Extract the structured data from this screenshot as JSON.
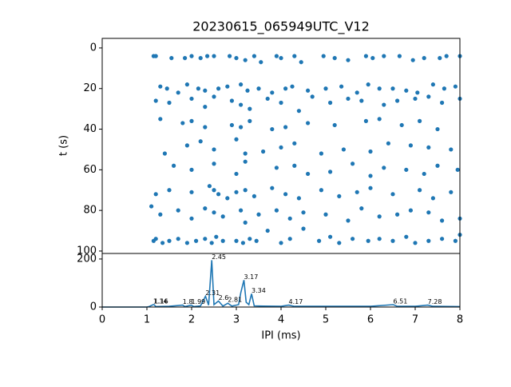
{
  "chart_data": [
    {
      "type": "scatter",
      "title": "20230615_065949UTC_V12",
      "y_label": "t (s)",
      "color": "#1f77b4",
      "xlim": [
        0,
        8
      ],
      "ylim": [
        -4.7,
        101.2
      ],
      "invert_y": true,
      "yticks": [
        0,
        20,
        40,
        60,
        80,
        100
      ],
      "x": [
        1.15,
        1.2,
        1.55,
        1.85,
        2.0,
        2.2,
        2.35,
        2.5,
        2.85,
        3.0,
        3.2,
        3.4,
        3.55,
        3.9,
        4.0,
        4.3,
        4.45,
        4.95,
        5.2,
        5.5,
        5.9,
        6.05,
        6.3,
        6.65,
        6.95,
        7.2,
        7.55,
        7.7,
        8.0,
        1.3,
        1.45,
        1.7,
        1.9,
        2.15,
        2.3,
        2.6,
        2.8,
        3.1,
        3.25,
        3.5,
        3.8,
        4.1,
        4.25,
        4.6,
        5.0,
        5.35,
        5.7,
        5.95,
        6.2,
        6.5,
        6.8,
        7.05,
        7.4,
        7.65,
        7.9,
        1.2,
        1.5,
        2.0,
        2.3,
        2.5,
        2.9,
        3.1,
        3.3,
        3.7,
        4.0,
        4.4,
        4.7,
        5.1,
        5.5,
        5.8,
        6.3,
        6.6,
        7.0,
        7.3,
        7.6,
        8.0,
        1.3,
        1.8,
        2.0,
        2.3,
        2.9,
        3.1,
        3.3,
        3.8,
        4.1,
        4.6,
        5.2,
        5.9,
        6.2,
        6.7,
        7.1,
        7.5,
        1.4,
        1.9,
        2.2,
        2.5,
        3.0,
        3.2,
        3.6,
        4.0,
        4.3,
        4.9,
        5.4,
        6.0,
        6.4,
        6.9,
        7.3,
        7.8,
        1.6,
        2.0,
        2.5,
        3.0,
        3.2,
        3.9,
        4.3,
        4.6,
        5.1,
        5.6,
        6.0,
        6.3,
        6.8,
        7.2,
        7.5,
        7.95,
        1.2,
        1.5,
        2.0,
        2.4,
        2.5,
        2.6,
        2.8,
        3.0,
        3.2,
        3.4,
        3.8,
        4.1,
        4.4,
        4.9,
        5.3,
        5.7,
        6.0,
        6.5,
        7.1,
        7.4,
        7.8,
        1.1,
        1.3,
        1.7,
        2.0,
        2.3,
        2.5,
        2.7,
        3.1,
        3.2,
        3.5,
        3.9,
        4.2,
        4.5,
        5.0,
        5.5,
        5.8,
        6.2,
        6.6,
        6.9,
        7.3,
        7.6,
        8.0,
        1.15,
        1.2,
        1.35,
        1.5,
        1.7,
        1.9,
        2.1,
        2.3,
        2.45,
        2.55,
        2.7,
        3.0,
        3.15,
        3.3,
        3.45,
        3.7,
        4.0,
        4.2,
        4.5,
        4.85,
        5.1,
        5.3,
        5.6,
        5.95,
        6.2,
        6.5,
        6.8,
        7.0,
        7.3,
        7.6,
        7.9,
        8.0
      ],
      "values": [
        4,
        4,
        5,
        5,
        4,
        5,
        4,
        4,
        4,
        5,
        6,
        4,
        7,
        4,
        5,
        4,
        7,
        4,
        5,
        6,
        4,
        5,
        4,
        4,
        6,
        5,
        5,
        4,
        4,
        19,
        20,
        22,
        18,
        20,
        21,
        20,
        19,
        18,
        21,
        20,
        22,
        20,
        19,
        21,
        20,
        19,
        22,
        18,
        20,
        20,
        21,
        22,
        18,
        20,
        19,
        26,
        27,
        25,
        29,
        24,
        26,
        28,
        30,
        25,
        27,
        31,
        24,
        27,
        25,
        26,
        28,
        26,
        25,
        24,
        27,
        25,
        35,
        37,
        36,
        39,
        38,
        39,
        36,
        40,
        39,
        37,
        38,
        36,
        35,
        38,
        36,
        40,
        52,
        48,
        46,
        50,
        45,
        52,
        51,
        49,
        47,
        52,
        50,
        51,
        47,
        48,
        49,
        50,
        58,
        60,
        57,
        62,
        56,
        59,
        58,
        62,
        61,
        57,
        63,
        59,
        60,
        62,
        58,
        60,
        72,
        70,
        71,
        68,
        70,
        72,
        74,
        71,
        70,
        73,
        69,
        72,
        74,
        70,
        73,
        71,
        69,
        72,
        70,
        74,
        71,
        78,
        82,
        80,
        84,
        79,
        81,
        83,
        80,
        86,
        82,
        80,
        84,
        81,
        82,
        85,
        79,
        83,
        82,
        80,
        81,
        85,
        84,
        95,
        94,
        96,
        95,
        94,
        96,
        95,
        94,
        96,
        93,
        95,
        95,
        96,
        94,
        95,
        90,
        96,
        94,
        89,
        95,
        93,
        96,
        94,
        95,
        94,
        95,
        93,
        96,
        95,
        94,
        95,
        92
      ]
    },
    {
      "type": "line",
      "x_label": "IPI (ms)",
      "color": "#1f77b4",
      "xlim": [
        0,
        8
      ],
      "xticks": [
        0,
        1,
        2,
        3,
        4,
        5,
        6,
        7,
        8
      ],
      "ylim": [
        0,
        223
      ],
      "yticks": [
        0,
        200
      ],
      "x": [
        0,
        1,
        1.05,
        1.14,
        1.16,
        1.2,
        1.5,
        1.8,
        1.85,
        1.99,
        2.05,
        2.2,
        2.31,
        2.38,
        2.45,
        2.5,
        2.6,
        2.7,
        2.81,
        2.9,
        3.05,
        3.1,
        3.17,
        3.22,
        3.28,
        3.34,
        3.4,
        3.6,
        4.0,
        4.17,
        4.3,
        5.0,
        6.0,
        6.51,
        6.6,
        7.0,
        7.28,
        7.4,
        8
      ],
      "values": [
        0,
        0,
        2,
        10,
        10,
        2,
        3,
        8,
        2,
        8,
        2,
        5,
        45,
        8,
        195,
        10,
        25,
        4,
        16,
        4,
        10,
        60,
        112,
        20,
        10,
        55,
        5,
        4,
        3,
        8,
        3,
        3,
        3,
        10,
        3,
        3,
        8,
        3,
        2
      ],
      "peaks": [
        1.14,
        1.16,
        1.8,
        1.99,
        2.31,
        2.45,
        2.6,
        2.81,
        3.17,
        3.34,
        4.17,
        6.51,
        7.28
      ]
    }
  ]
}
